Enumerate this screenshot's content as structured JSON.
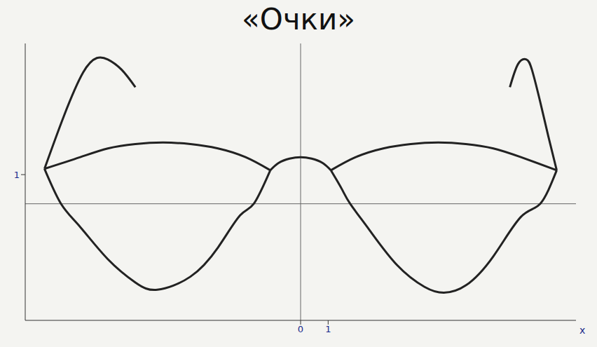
{
  "chart_data": {
    "type": "line",
    "title": "«Очки»",
    "x_label": "x",
    "xlim": [
      -10,
      10
    ],
    "xticks": [
      0,
      1
    ],
    "ylim": [
      -4,
      5.5
    ],
    "yticks": [
      1
    ],
    "grid": false,
    "series": [
      {
        "color": "#222222",
        "x": [
          -1.1,
          -0.8,
          -0.4,
          0,
          0.4,
          0.8,
          1.1
        ],
        "values": [
          1.15,
          1.4,
          1.55,
          1.6,
          1.55,
          1.4,
          1.15
        ]
      },
      {
        "color": "#222222",
        "x": [
          1.1,
          2,
          3,
          4,
          5,
          6,
          7,
          8,
          9.3
        ],
        "values": [
          1.15,
          1.6,
          1.9,
          2.05,
          2.1,
          2.05,
          1.9,
          1.6,
          1.15
        ]
      },
      {
        "color": "#222222",
        "x": [
          1.1,
          1.5,
          1.8,
          2.5,
          3.5,
          4.5,
          5.2,
          6,
          7,
          8,
          8.7,
          9.3
        ],
        "values": [
          1.15,
          0.5,
          0,
          -0.9,
          -2.1,
          -2.85,
          -3.05,
          -2.8,
          -1.8,
          -0.45,
          0,
          1.15
        ]
      },
      {
        "color": "#222222",
        "x": [
          9.3,
          9.0,
          8.7,
          8.4,
          8.2,
          7.9,
          7.6
        ],
        "values": [
          1.15,
          2.3,
          3.5,
          4.6,
          4.95,
          4.8,
          4.0
        ]
      },
      {
        "color": "#222222",
        "x": [
          -9.3,
          -8,
          -7,
          -6,
          -5,
          -4,
          -3,
          -2,
          -1.1
        ],
        "values": [
          1.2,
          1.6,
          1.9,
          2.05,
          2.1,
          2.05,
          1.9,
          1.6,
          1.15
        ]
      },
      {
        "color": "#222222",
        "x": [
          -9.3,
          -8.7,
          -8,
          -7,
          -6,
          -5.2,
          -4,
          -3,
          -2.2,
          -1.7,
          -1.1
        ],
        "values": [
          1.2,
          0,
          -0.8,
          -1.9,
          -2.7,
          -2.95,
          -2.5,
          -1.5,
          -0.4,
          0,
          1.15
        ]
      },
      {
        "color": "#222222",
        "x": [
          -9.3,
          -8.6,
          -7.9,
          -7.4,
          -7.0,
          -6.5,
          -6.0
        ],
        "values": [
          1.2,
          3.0,
          4.5,
          5.0,
          4.95,
          4.6,
          4.0
        ]
      }
    ]
  }
}
